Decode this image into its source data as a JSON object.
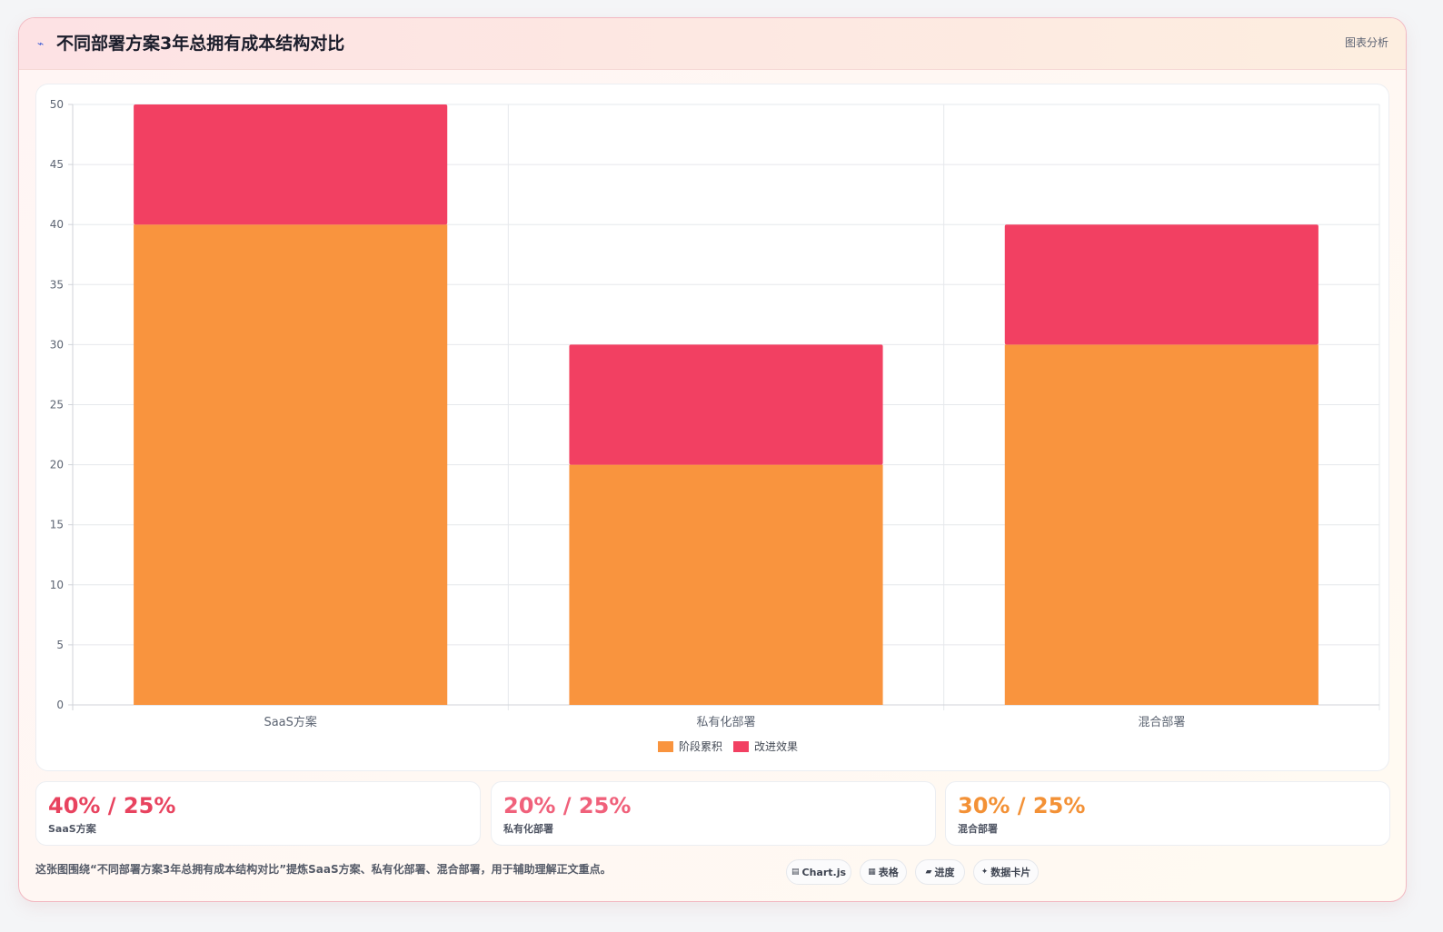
{
  "header": {
    "icon": "chart-line-icon",
    "title": "不同部署方案3年总拥有成本结构对比",
    "tag": "图表分析"
  },
  "colors": {
    "series_orange": "#f9943e",
    "series_red": "#f24062",
    "stat_red": "#e8435f",
    "stat_pink": "#f0617b",
    "stat_orange": "#f39136"
  },
  "chart_data": {
    "type": "bar",
    "stacked": true,
    "categories": [
      "SaaS方案",
      "私有化部署",
      "混合部署"
    ],
    "series": [
      {
        "name": "阶段累积",
        "values": [
          40,
          20,
          30
        ],
        "color": "#f9943e"
      },
      {
        "name": "改进效果",
        "values": [
          10,
          10,
          10
        ],
        "color": "#f24062"
      }
    ],
    "ylim": [
      0,
      50
    ],
    "yticks": [
      0,
      5,
      10,
      15,
      20,
      25,
      30,
      35,
      40,
      45,
      50
    ],
    "grid": true,
    "legend_position": "bottom"
  },
  "stats": [
    {
      "value": "40% / 25%",
      "label": "SaaS方案",
      "color": "#e8435f"
    },
    {
      "value": "20% / 25%",
      "label": "私有化部署",
      "color": "#f0617b"
    },
    {
      "value": "30% / 25%",
      "label": "混合部署",
      "color": "#f39136"
    }
  ],
  "footer": {
    "note": "这张图围绕“不同部署方案3年总拥有成本结构对比”提炼SaaS方案、私有化部署、混合部署，用于辅助理解正文重点。",
    "pills": [
      {
        "icon": "chart-icon",
        "glyph": "▤",
        "label": "Chart.js"
      },
      {
        "icon": "table-icon",
        "glyph": "▦",
        "label": "表格"
      },
      {
        "icon": "progress-icon",
        "glyph": "▰",
        "label": "进度"
      },
      {
        "icon": "sparkle-icon",
        "glyph": "✦",
        "label": "数据卡片"
      }
    ]
  }
}
